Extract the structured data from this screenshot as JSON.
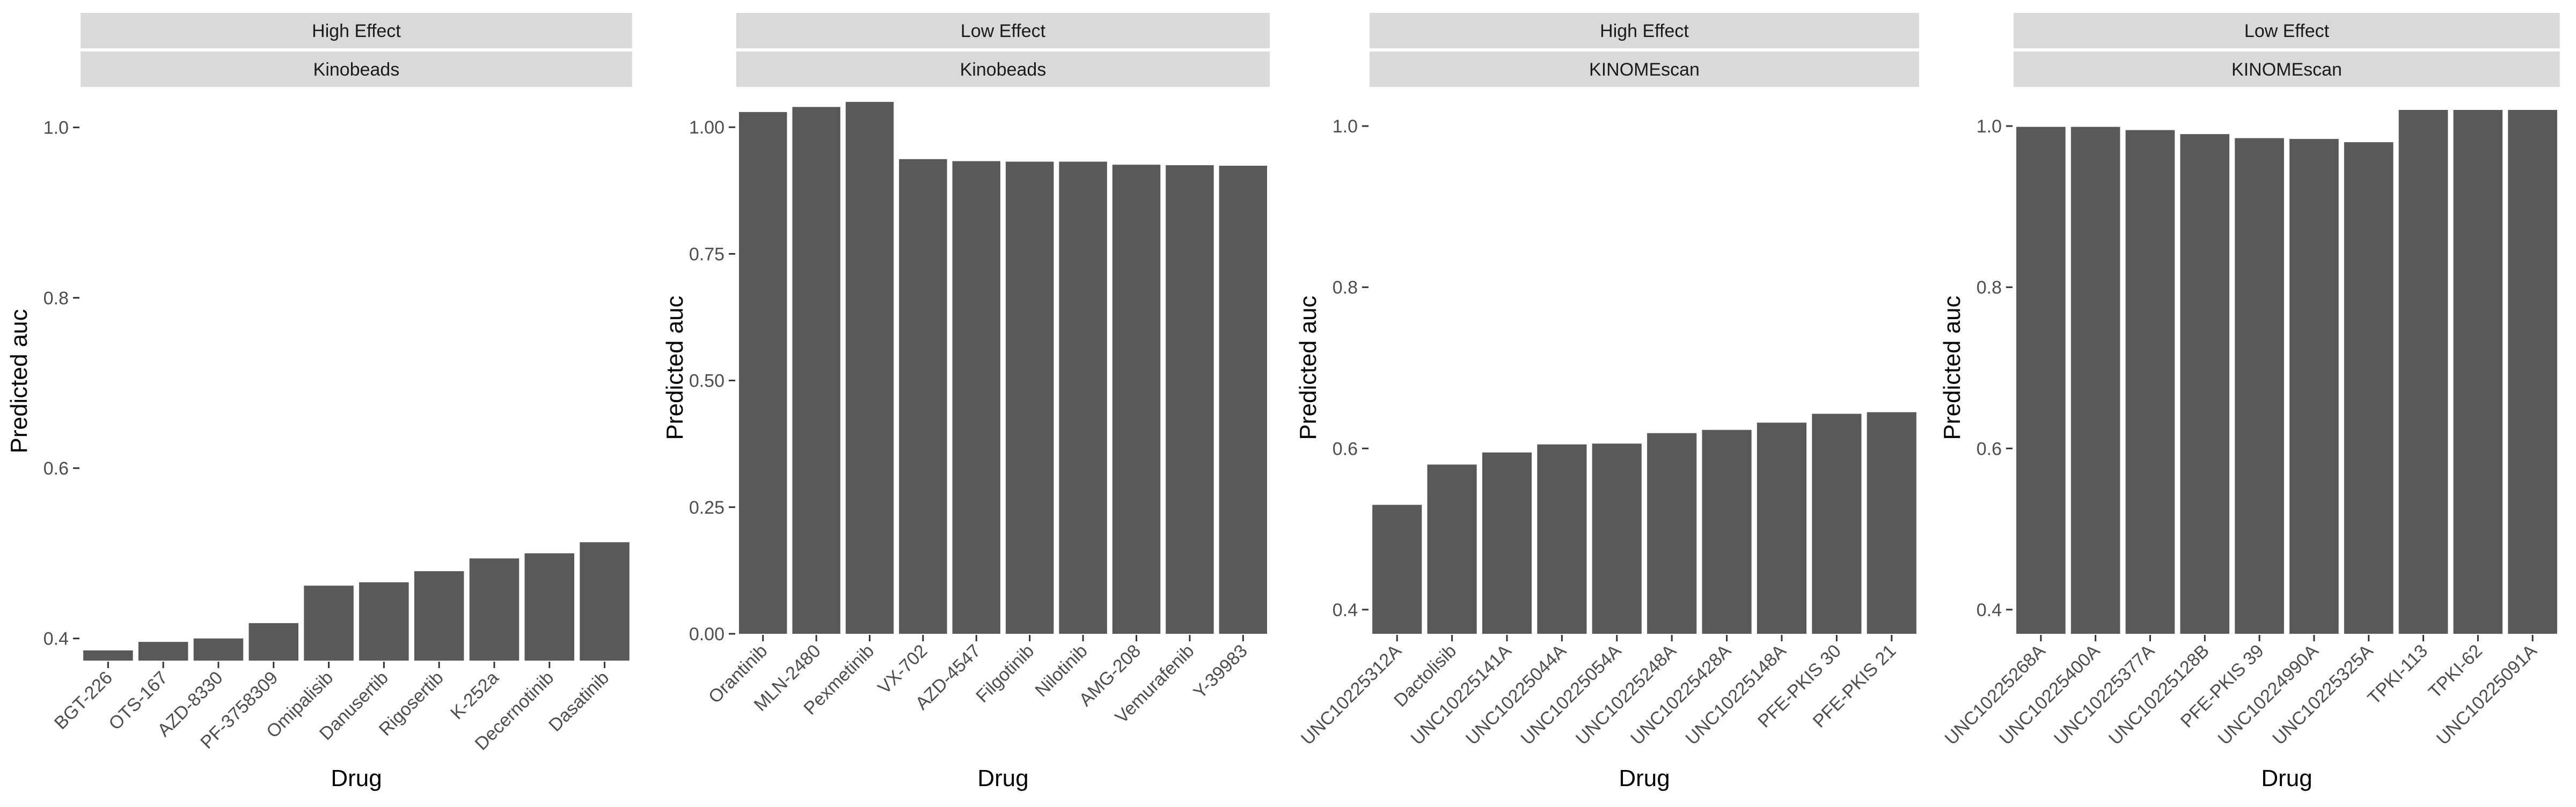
{
  "chart_data": [
    {
      "type": "bar",
      "strip_labels": [
        "High Effect",
        "Kinobeads"
      ],
      "xlabel": "Drug",
      "ylabel": "Predicted auc",
      "categories": [
        "BGT-226",
        "OTS-167",
        "AZD-8330",
        "PF-3758309",
        "Omipalisib",
        "Danusertib",
        "Rigosertib",
        "K-252a",
        "Decernotinib",
        "Dasatinib"
      ],
      "values": [
        0.386,
        0.396,
        0.4,
        0.418,
        0.462,
        0.466,
        0.479,
        0.494,
        0.5,
        0.513
      ],
      "yticks": [
        0.4,
        0.6,
        0.8,
        1.0
      ],
      "ytick_labels": [
        "0.4",
        "0.6",
        "0.8",
        "1.0"
      ],
      "ylim": [
        0.374,
        1.03
      ],
      "bar_color": "#595959"
    },
    {
      "type": "bar",
      "strip_labels": [
        "Low Effect",
        "Kinobeads"
      ],
      "xlabel": "Drug",
      "ylabel": "Predicted auc",
      "categories": [
        "Orantinib",
        "MLN-2480",
        "Pexmetinib",
        "VX-702",
        "AZD-4547",
        "Filgotinib",
        "Nilotinib",
        "AMG-208",
        "Vemurafenib",
        "Y-39983"
      ],
      "values": [
        1.03,
        1.04,
        1.05,
        0.937,
        0.933,
        0.932,
        0.932,
        0.926,
        0.925,
        0.924
      ],
      "yticks": [
        0.0,
        0.25,
        0.5,
        0.75,
        1.0
      ],
      "ytick_labels": [
        "0.00",
        "0.25",
        "0.50",
        "0.75",
        "1.00"
      ],
      "ylim": [
        0,
        1.05
      ],
      "bar_color": "#595959"
    },
    {
      "type": "bar",
      "strip_labels": [
        "High Effect",
        "KINOMEscan"
      ],
      "xlabel": "Drug",
      "ylabel": "Predicted auc",
      "categories": [
        "UNC10225312A",
        "Dactolisib",
        "UNC10225141A",
        "UNC10225044A",
        "UNC10225054A",
        "UNC10225248A",
        "UNC10225428A",
        "UNC10225148A",
        "PFE-PKIS 30",
        "PFE-PKIS 21"
      ],
      "values": [
        0.53,
        0.58,
        0.595,
        0.605,
        0.606,
        0.619,
        0.623,
        0.632,
        0.643,
        0.645
      ],
      "yticks": [
        0.4,
        0.6,
        0.8,
        1.0
      ],
      "ytick_labels": [
        "0.4",
        "0.6",
        "0.8",
        "1.0"
      ],
      "ylim": [
        0.37,
        1.03
      ],
      "bar_color": "#595959"
    },
    {
      "type": "bar",
      "strip_labels": [
        "Low Effect",
        "KINOMEscan"
      ],
      "xlabel": "Drug",
      "ylabel": "Predicted auc",
      "categories": [
        "UNC10225268A",
        "UNC10225400A",
        "UNC10225377A",
        "UNC10225128B",
        "PFE-PKIS 39",
        "UNC10224990A",
        "UNC10225325A",
        "TPKI-113",
        "TPKI-62",
        "UNC10225091A"
      ],
      "values": [
        0.999,
        0.999,
        0.995,
        0.99,
        0.985,
        0.984,
        0.98,
        1.02,
        1.02,
        1.02
      ],
      "yticks": [
        0.4,
        0.6,
        0.8,
        1.0
      ],
      "ytick_labels": [
        "0.4",
        "0.6",
        "0.8",
        "1.0"
      ],
      "ylim": [
        0.37,
        1.03
      ],
      "bar_color": "#595959"
    }
  ]
}
